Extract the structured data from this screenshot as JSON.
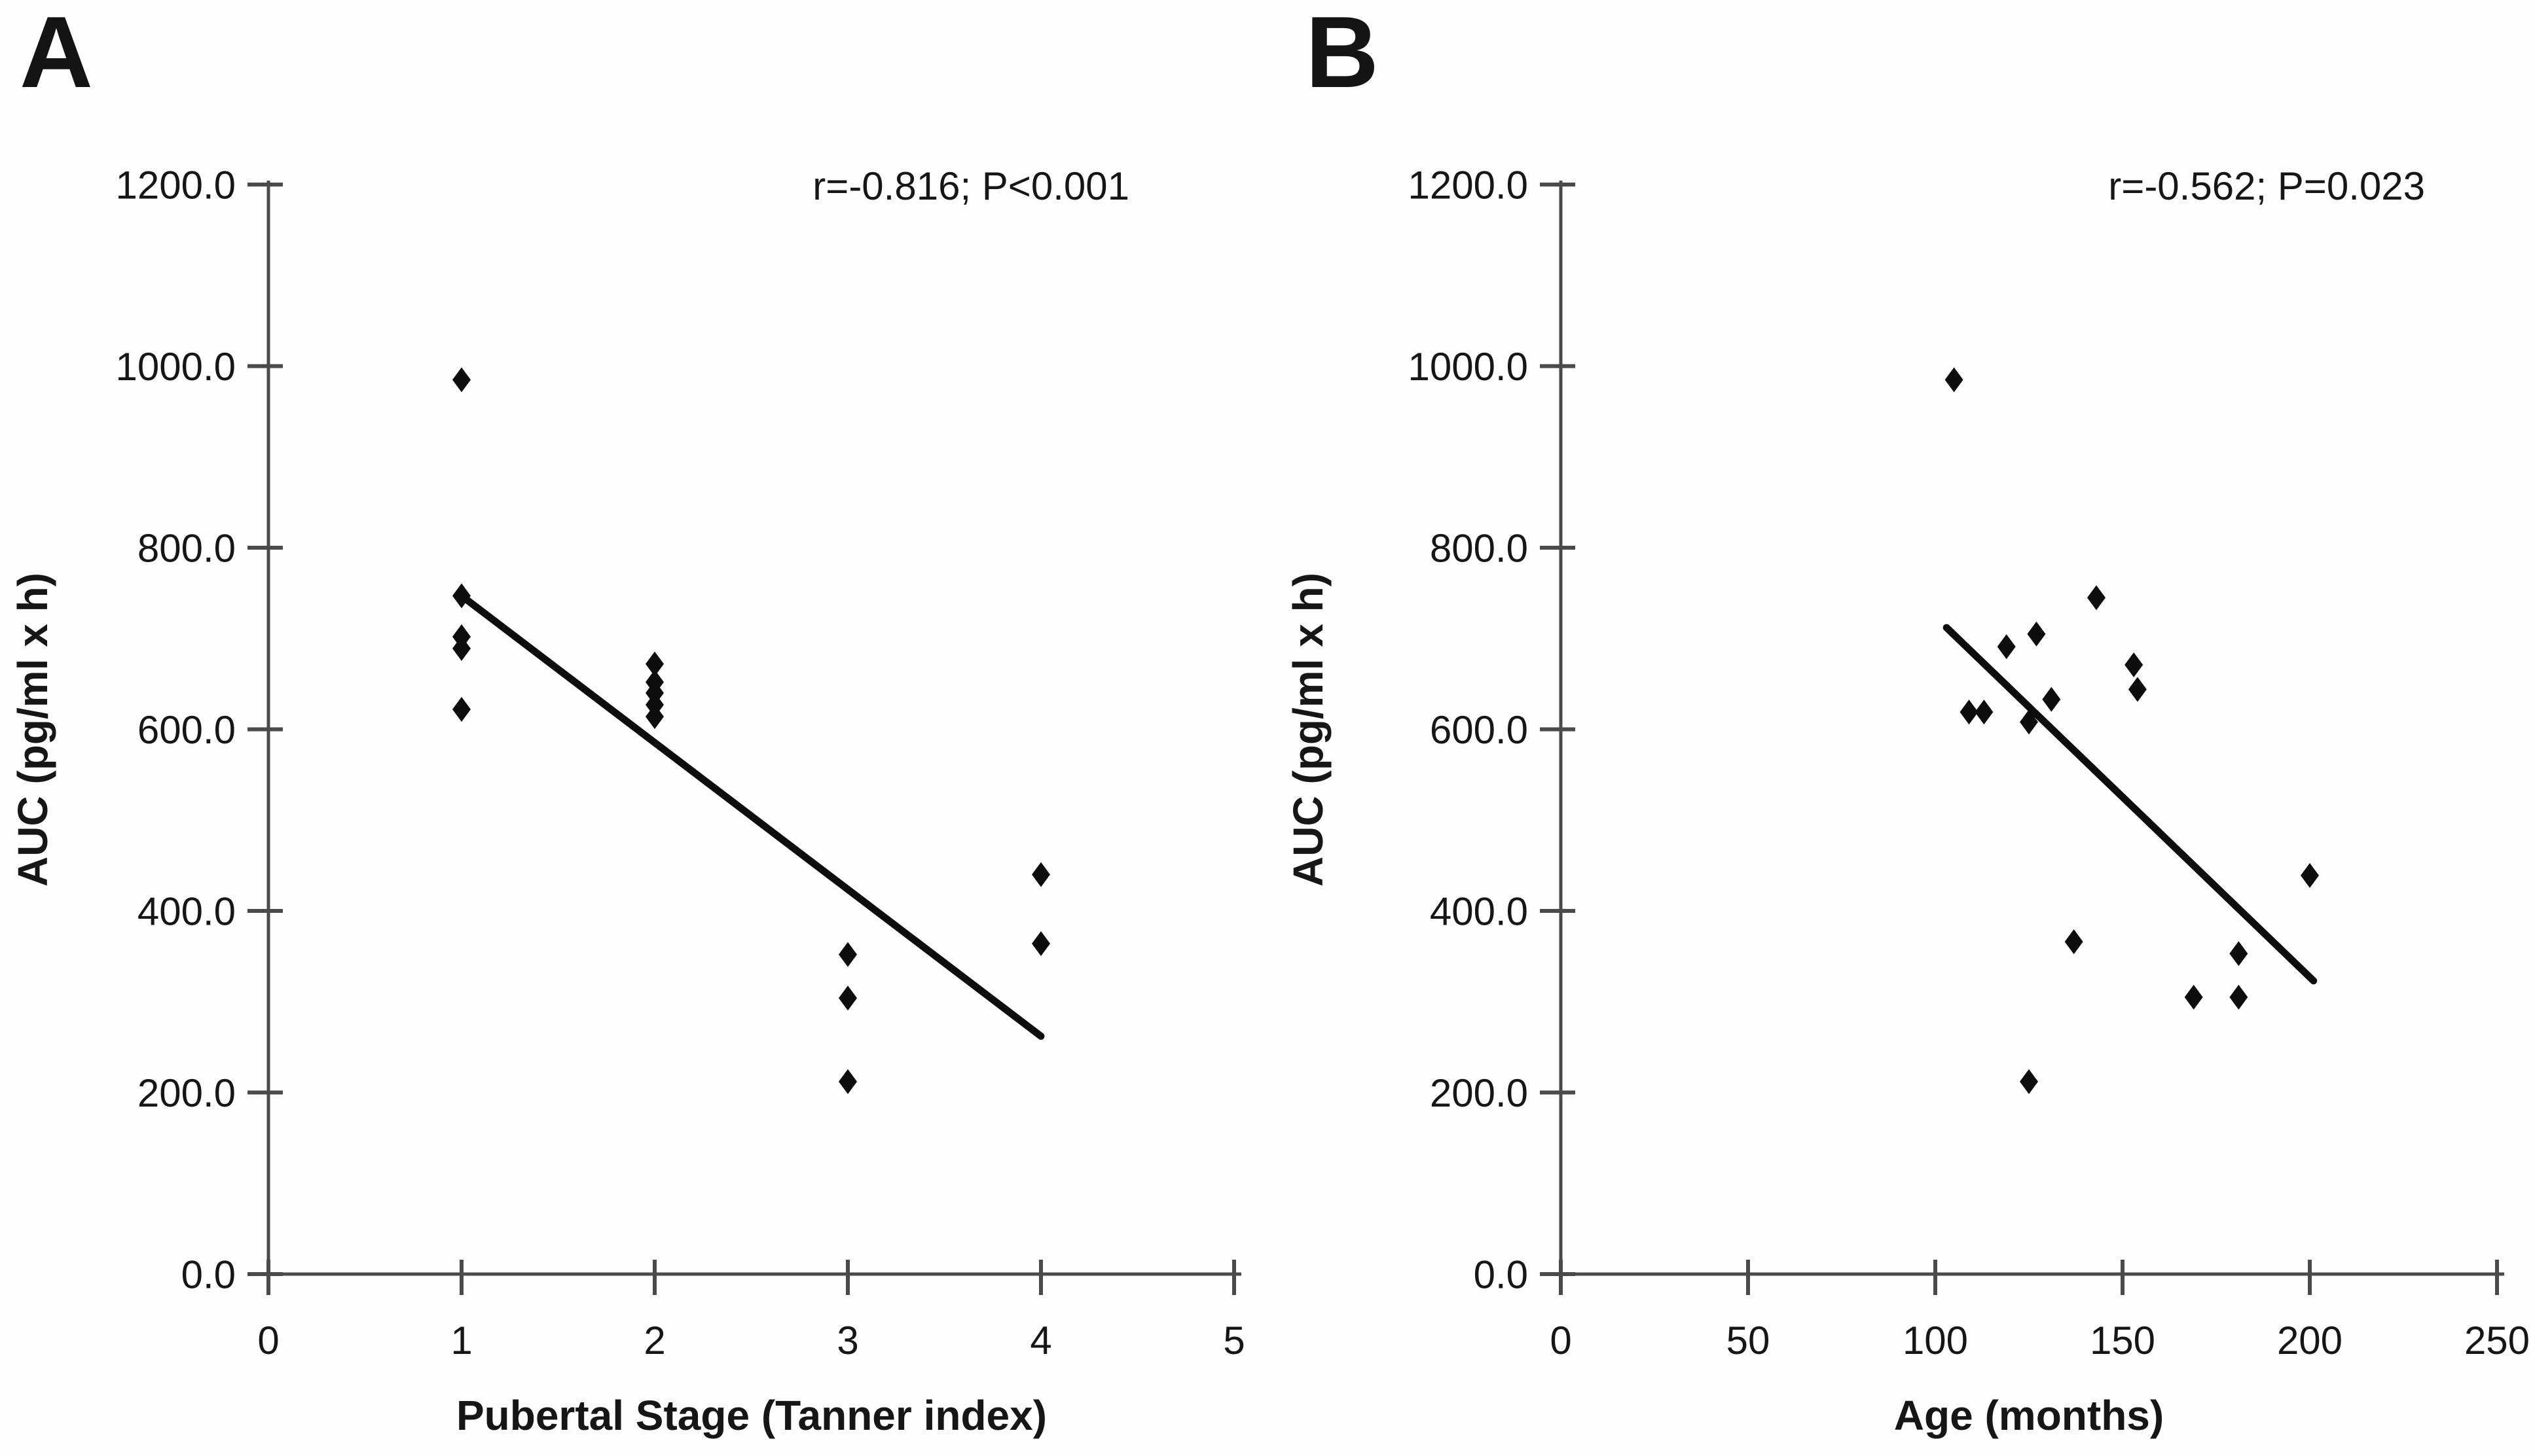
{
  "figure": {
    "background": "#fdfdfd",
    "marker_color": "#0d0d0d",
    "axis_color": "#4a4a4a",
    "text_color": "#161616",
    "marker_shape": "diamond"
  },
  "chart_data": [
    {
      "panel_label": "A",
      "type": "scatter",
      "annotation": "r=-0.816; P<0.001",
      "xlabel": "Pubertal Stage (Tanner index)",
      "ylabel": "AUC (pg/ml x h)",
      "xlim": [
        0,
        5
      ],
      "ylim": [
        0,
        1200
      ],
      "xticks": [
        0,
        1,
        2,
        3,
        4,
        5
      ],
      "xtick_labels": [
        "0",
        "1",
        "2",
        "3",
        "4",
        "5"
      ],
      "yticks": [
        0,
        200,
        400,
        600,
        800,
        1000,
        1200
      ],
      "ytick_labels": [
        "0.0",
        "200.0",
        "400.0",
        "600.0",
        "800.0",
        "1000.0",
        "1200.0"
      ],
      "grid": false,
      "legend": null,
      "points": [
        [
          1,
          985
        ],
        [
          1,
          747
        ],
        [
          1,
          702
        ],
        [
          1,
          689
        ],
        [
          1,
          622
        ],
        [
          2,
          672
        ],
        [
          2,
          652
        ],
        [
          2,
          640
        ],
        [
          2,
          627
        ],
        [
          2,
          614
        ],
        [
          3,
          352
        ],
        [
          3,
          304
        ],
        [
          3,
          212
        ],
        [
          4,
          440
        ],
        [
          4,
          364
        ]
      ],
      "trendline": {
        "x1": 1,
        "y1": 747,
        "x2": 4,
        "y2": 262
      }
    },
    {
      "panel_label": "B",
      "type": "scatter",
      "annotation": "r=-0.562; P=0.023",
      "xlabel": "Age (months)",
      "ylabel": "AUC (pg/ml x h)",
      "xlim": [
        0,
        250
      ],
      "ylim": [
        0,
        1200
      ],
      "xticks": [
        0,
        50,
        100,
        150,
        200,
        250
      ],
      "xtick_labels": [
        "0",
        "50",
        "100",
        "150",
        "200",
        "250"
      ],
      "yticks": [
        0,
        200,
        400,
        600,
        800,
        1000,
        1200
      ],
      "ytick_labels": [
        "0.0",
        "200.0",
        "400.0",
        "600.0",
        "800.0",
        "1000.0",
        "1200.0"
      ],
      "grid": false,
      "legend": null,
      "points": [
        [
          105,
          985
        ],
        [
          143,
          745
        ],
        [
          127,
          705
        ],
        [
          119,
          691
        ],
        [
          153,
          671
        ],
        [
          154,
          644
        ],
        [
          131,
          633
        ],
        [
          109,
          619
        ],
        [
          113,
          619
        ],
        [
          125,
          608
        ],
        [
          200,
          439
        ],
        [
          137,
          366
        ],
        [
          181,
          353
        ],
        [
          169,
          305
        ],
        [
          181,
          305
        ],
        [
          125,
          212
        ]
      ],
      "trendline": {
        "x1": 103,
        "y1": 712,
        "x2": 201,
        "y2": 323
      }
    }
  ]
}
